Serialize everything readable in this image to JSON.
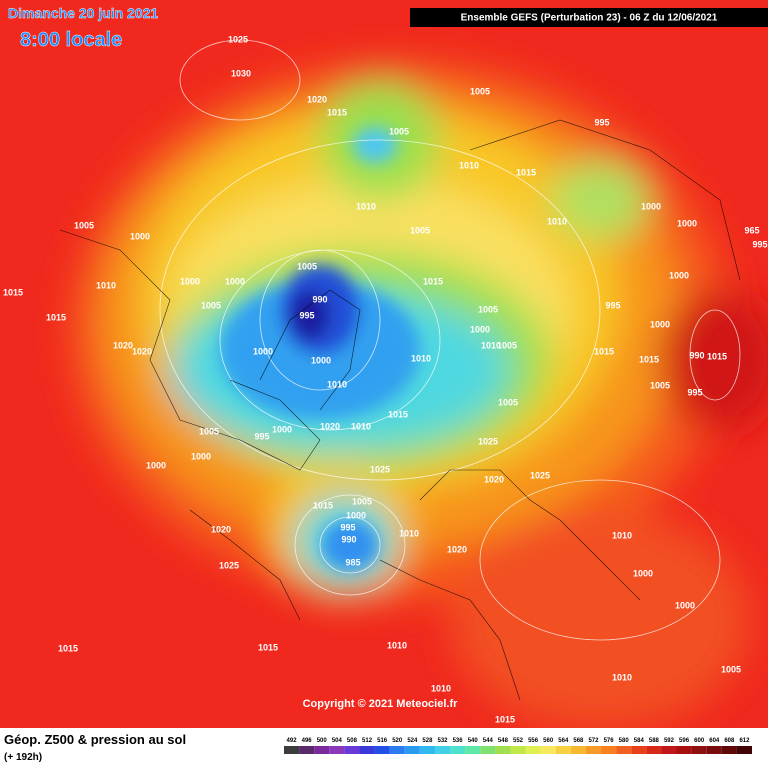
{
  "header": {
    "date": "Dimanche 20 juin 2021",
    "time": "8:00 locale",
    "run": "Ensemble GEFS  (Perturbation 23)  -  06 Z du 12/06/2021"
  },
  "map": {
    "copyright": "Copyright © 2021 Meteociel.fr",
    "isobar_labels": [
      "1025",
      "1030",
      "1005",
      "1020",
      "1015",
      "1005",
      "995",
      "1010",
      "1015",
      "1010",
      "1010",
      "1000",
      "1000",
      "1005",
      "1000",
      "1005",
      "965",
      "995",
      "1005",
      "1000",
      "1000",
      "1015",
      "1000",
      "1010",
      "990",
      "1005",
      "1005",
      "995",
      "1015",
      "995",
      "1015",
      "1000",
      "1000",
      "1020",
      "1020",
      "1010",
      "1005",
      "1015",
      "1000",
      "1000",
      "1010",
      "1015",
      "990",
      "1015",
      "1010",
      "1005",
      "995",
      "1005",
      "1015",
      "1020",
      "1010",
      "1005",
      "1000",
      "995",
      "1025",
      "1000",
      "1000",
      "1020",
      "1025",
      "1015",
      "1005",
      "1000",
      "995",
      "990",
      "1010",
      "1020",
      "985",
      "1020",
      "1025",
      "1010",
      "1000",
      "1000",
      "1015",
      "1025",
      "1015",
      "1010",
      "1005",
      "1010",
      "1010",
      "1015"
    ]
  },
  "footer": {
    "title": "Géop. Z500 & pression au sol",
    "lead": "(+ 192h)",
    "scale": [
      492,
      496,
      500,
      504,
      508,
      512,
      516,
      520,
      524,
      528,
      532,
      536,
      540,
      544,
      548,
      552,
      556,
      560,
      564,
      568,
      572,
      576,
      580,
      584,
      588,
      592,
      596,
      600,
      604,
      608,
      612
    ]
  }
}
